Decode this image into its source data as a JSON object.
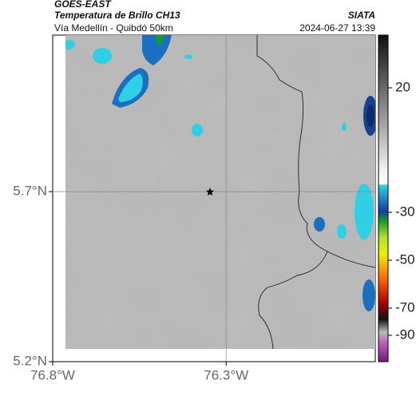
{
  "header": {
    "title": "GOES-EAST",
    "subtitle": "Temperatura de Brillo CH13",
    "route": "Vía Medellín - Quibdó 50km",
    "source": "SIATA",
    "timestamp": "2024-06-27 13:39"
  },
  "map": {
    "lat_range": [
      5.2,
      6.16
    ],
    "lon_range": [
      -76.8,
      -75.87
    ],
    "lat_ticks": [
      {
        "value": 5.7,
        "label": "5.7°N"
      },
      {
        "value": 5.2,
        "label": "5.2°N"
      }
    ],
    "lon_ticks": [
      {
        "value": -76.8,
        "label": "76.8°W"
      },
      {
        "value": -76.3,
        "label": "76.3°W"
      }
    ]
  },
  "colorbar": {
    "ticks": [
      20,
      -30,
      -50,
      -70,
      -90
    ]
  }
}
